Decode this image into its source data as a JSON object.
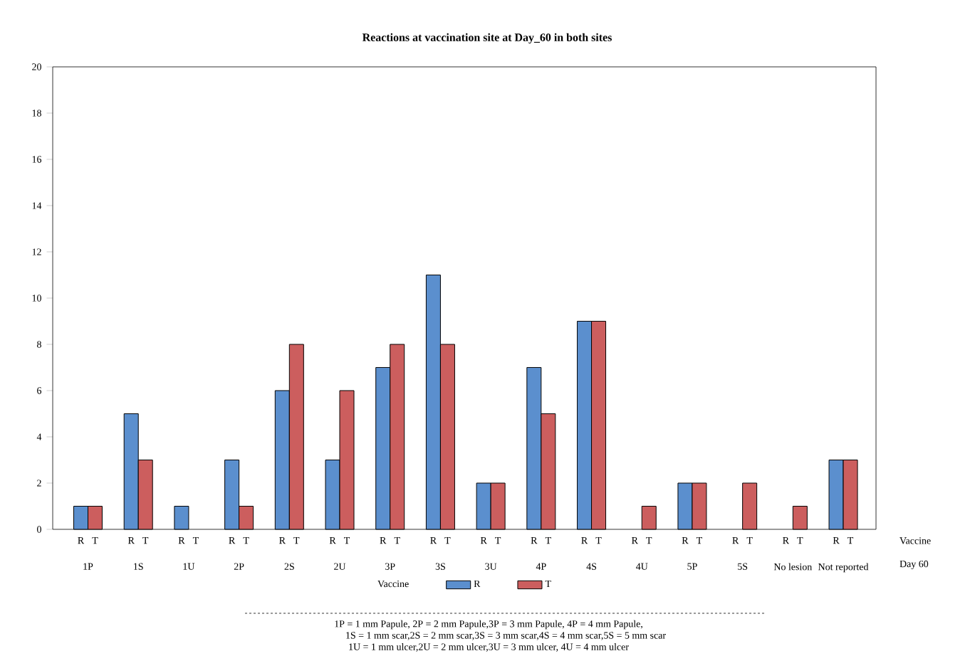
{
  "chart_data": {
    "type": "bar",
    "title": "Reactions at vaccination site at Day_60 in both sites",
    "categories": [
      "1P",
      "1S",
      "1U",
      "2P",
      "2S",
      "2U",
      "3P",
      "3S",
      "3U",
      "4P",
      "4S",
      "4U",
      "5P",
      "5S",
      "No lesion",
      "Not reported"
    ],
    "series": [
      {
        "name": "R",
        "color": "#5b8fce",
        "values": [
          1,
          5,
          1,
          3,
          6,
          3,
          7,
          11,
          2,
          7,
          9,
          0,
          2,
          0,
          0,
          3
        ]
      },
      {
        "name": "T",
        "color": "#cc5e5e",
        "values": [
          1,
          3,
          0,
          1,
          8,
          6,
          8,
          8,
          2,
          5,
          9,
          1,
          2,
          2,
          1,
          3
        ]
      }
    ],
    "xlabel": "Day 60",
    "legend_title": "Vaccine",
    "legend": "bottom",
    "ylim": [
      0,
      20
    ],
    "yticks": [
      0,
      2,
      4,
      6,
      8,
      10,
      12,
      14,
      16,
      18,
      20
    ],
    "annotations": [
      "Vaccine",
      "1P = 1 mm Papule, 2P = 2 mm Papule,3P = 3 mm Papule, 4P = 4 mm Papule,",
      "1S = 1 mm scar,2S = 2 mm scar,3S = 3 mm scar,4S = 4 mm scar,5S = 5 mm scar",
      "1U = 1 mm ulcer,2U = 2 mm ulcer,3U = 3 mm ulcer, 4U = 4 mm ulcer"
    ]
  }
}
